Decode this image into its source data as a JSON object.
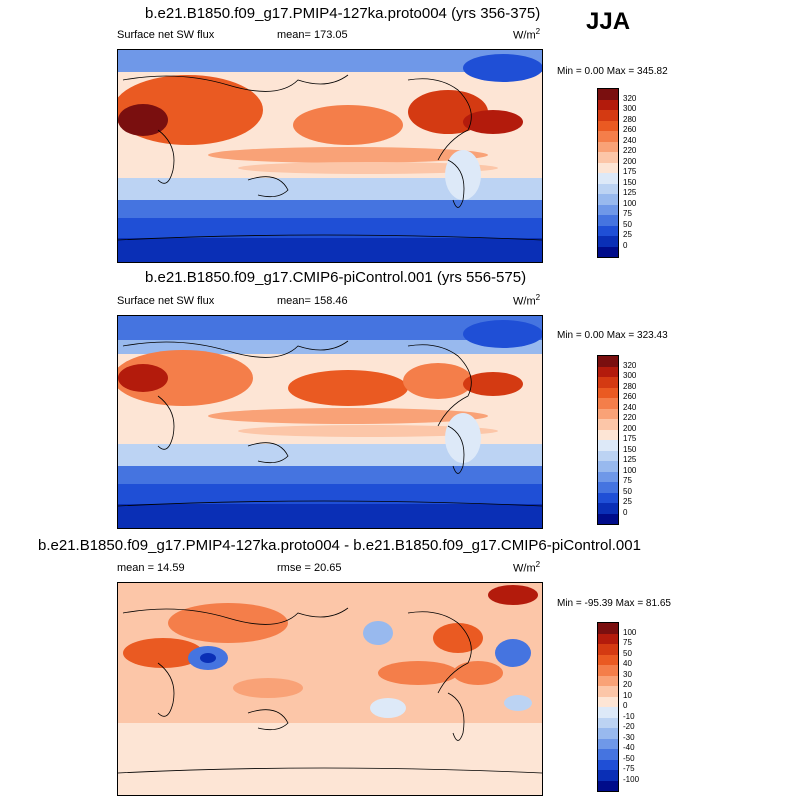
{
  "season": "JJA",
  "panels": [
    {
      "title": "b.e21.B1850.f09_g17.PMIP4-127ka.proto004 (yrs 356-375)",
      "left_label": "Surface net SW flux",
      "center_label": "mean= 173.05",
      "unit": "W/m",
      "unit_exp": "2",
      "minmax": "Min =   0.00 Max = 345.82"
    },
    {
      "title": "b.e21.B1850.f09_g17.CMIP6-piControl.001 (yrs 556-575)",
      "left_label": "Surface net SW flux",
      "center_label": "mean= 158.46",
      "unit": "W/m",
      "unit_exp": "2",
      "minmax": "Min =   0.00 Max = 323.43"
    },
    {
      "title": "b.e21.B1850.f09_g17.PMIP4-127ka.proto004 - b.e21.B1850.f09_g17.CMIP6-piControl.001",
      "left_label": "mean =  14.59",
      "center_label": "rmse =  20.65",
      "unit": "W/m",
      "unit_exp": "2",
      "minmax": "Min = -95.39 Max =  81.65"
    }
  ],
  "colorbar_abs": {
    "labels": [
      "320",
      "300",
      "280",
      "260",
      "240",
      "220",
      "200",
      "175",
      "150",
      "125",
      "100",
      "75",
      "50",
      "25",
      "0"
    ],
    "colors": [
      "#7a0f0f",
      "#b31b0c",
      "#d43a12",
      "#ea5a22",
      "#f47e4a",
      "#f9a277",
      "#fcc6a8",
      "#fde5d5",
      "#dde9f8",
      "#bcd3f3",
      "#98b9ee",
      "#6f98e8",
      "#4574e0",
      "#1f4fd6",
      "#0a2fb6",
      "#000c8a"
    ]
  },
  "colorbar_diff": {
    "labels": [
      "100",
      "75",
      "50",
      "40",
      "30",
      "20",
      "10",
      "0",
      "-10",
      "-20",
      "-30",
      "-40",
      "-50",
      "-75",
      "-100"
    ],
    "colors": [
      "#7a0f0f",
      "#b31b0c",
      "#d43a12",
      "#ea5a22",
      "#f47e4a",
      "#f9a277",
      "#fcc6a8",
      "#fde5d5",
      "#dde9f8",
      "#bcd3f3",
      "#98b9ee",
      "#6f98e8",
      "#4574e0",
      "#1f4fd6",
      "#0a2fb6",
      "#000c8a"
    ]
  }
}
